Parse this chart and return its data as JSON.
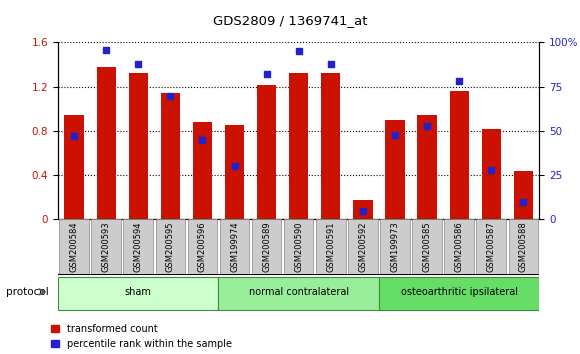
{
  "title": "GDS2809 / 1369741_at",
  "categories": [
    "GSM200584",
    "GSM200593",
    "GSM200594",
    "GSM200595",
    "GSM200596",
    "GSM199974",
    "GSM200589",
    "GSM200590",
    "GSM200591",
    "GSM200592",
    "GSM199973",
    "GSM200585",
    "GSM200586",
    "GSM200587",
    "GSM200588"
  ],
  "red_values": [
    0.94,
    1.38,
    1.32,
    1.14,
    0.88,
    0.85,
    1.22,
    1.32,
    1.32,
    0.18,
    0.9,
    0.94,
    1.16,
    0.82,
    0.44
  ],
  "blue_values": [
    47,
    96,
    88,
    70,
    45,
    30,
    82,
    95,
    88,
    5,
    48,
    53,
    78,
    28,
    10
  ],
  "groups": [
    {
      "label": "sham",
      "start": 0,
      "end": 5,
      "color": "#ccffcc"
    },
    {
      "label": "normal contralateral",
      "start": 5,
      "end": 10,
      "color": "#99ee99"
    },
    {
      "label": "osteoarthritic ipsilateral",
      "start": 10,
      "end": 15,
      "color": "#66dd66"
    }
  ],
  "ylim_left": [
    0,
    1.6
  ],
  "ylim_right": [
    0,
    100
  ],
  "yticks_left": [
    0,
    0.4,
    0.8,
    1.2,
    1.6
  ],
  "yticks_right": [
    0,
    25,
    50,
    75,
    100
  ],
  "ytick_labels_right": [
    "0",
    "25",
    "50",
    "75",
    "100%"
  ],
  "bar_color": "#cc1100",
  "dot_color": "#2222cc",
  "label_bg_color": "#cccccc",
  "protocol_label": "protocol",
  "legend_items": [
    "transformed count",
    "percentile rank within the sample"
  ]
}
